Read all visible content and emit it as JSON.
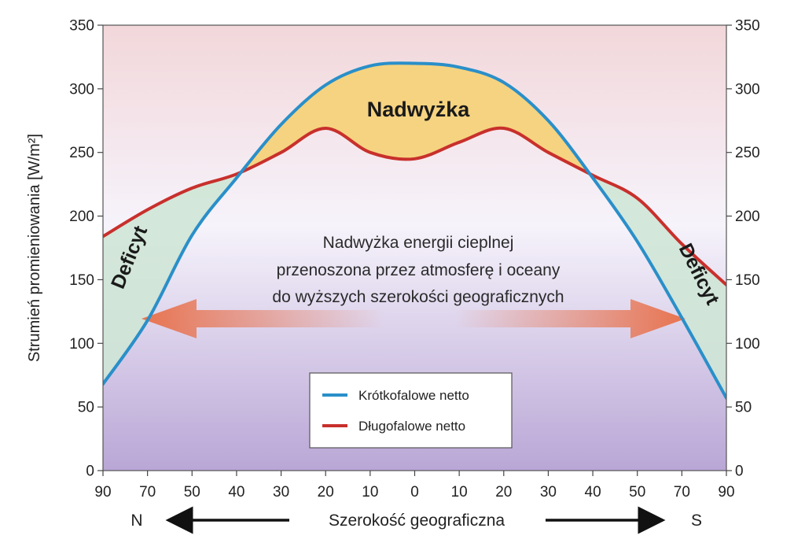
{
  "chart_data": {
    "type": "line",
    "ylabel": "Strumień promieniowania [W/m²]",
    "xlabel": "Szerokość geograficzna",
    "direction_left": "N",
    "direction_right": "S",
    "ylim": [
      0,
      350
    ],
    "yticks": [
      0,
      50,
      100,
      150,
      200,
      250,
      300,
      350
    ],
    "xtick_labels": [
      "90",
      "70",
      "50",
      "40",
      "30",
      "20",
      "10",
      "0",
      "10",
      "20",
      "30",
      "40",
      "50",
      "70",
      "90"
    ],
    "x": [
      -90,
      -70,
      -50,
      -40,
      -30,
      -20,
      -10,
      0,
      10,
      20,
      30,
      40,
      50,
      70,
      90
    ],
    "series": [
      {
        "name": "Krótkofalowe netto",
        "color": "#2a8fc9",
        "values": [
          68,
          118,
          185,
          230,
          272,
          303,
          318,
          320,
          317,
          305,
          275,
          230,
          180,
          120,
          57
        ]
      },
      {
        "name": "Długofalowe netto",
        "color": "#c8302c",
        "values": [
          184,
          205,
          222,
          233,
          250,
          269,
          250,
          245,
          258,
          269,
          250,
          232,
          214,
          178,
          146
        ]
      }
    ],
    "annotations": {
      "surplus": "Nadwyżka",
      "transport": [
        "Nadwyżka energii cieplnej",
        "przenoszona przez atmosferę i oceany",
        "do wyższych szerokości geograficznych"
      ],
      "deficit_left": "Deficyt",
      "deficit_right": "Deficyt"
    },
    "colors": {
      "surplus_fill": "#f5d27a",
      "deficit_fill": "#cfe6d6",
      "arrow": "#e8734f",
      "bg_top": "#f2d7da",
      "bg_mid": "#f6f3fb",
      "bg_bottom": "#b9a6d6"
    },
    "grid": false,
    "legend_position": "bottom-center"
  }
}
